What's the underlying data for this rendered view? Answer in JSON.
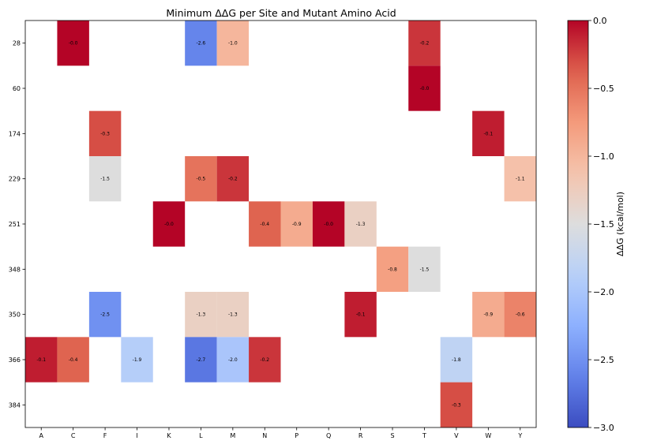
{
  "chart_data": {
    "type": "heatmap",
    "title": "Minimum ΔΔG per Site and Mutant Amino Acid",
    "xlabel": "",
    "ylabel": "",
    "x_categories": [
      "A",
      "C",
      "F",
      "I",
      "K",
      "L",
      "M",
      "N",
      "P",
      "Q",
      "R",
      "S",
      "T",
      "V",
      "W",
      "Y"
    ],
    "y_categories": [
      "28",
      "60",
      "174",
      "229",
      "251",
      "348",
      "350",
      "366",
      "384"
    ],
    "cells": [
      {
        "site": "28",
        "aa": "C",
        "value": -0.0,
        "label": "-0.0"
      },
      {
        "site": "28",
        "aa": "L",
        "value": -2.6,
        "label": "-2.6"
      },
      {
        "site": "28",
        "aa": "M",
        "value": -1.0,
        "label": "-1.0"
      },
      {
        "site": "28",
        "aa": "T",
        "value": -0.2,
        "label": "-0.2"
      },
      {
        "site": "60",
        "aa": "T",
        "value": -0.0,
        "label": "-0.0"
      },
      {
        "site": "174",
        "aa": "F",
        "value": -0.3,
        "label": "-0.3"
      },
      {
        "site": "174",
        "aa": "W",
        "value": -0.1,
        "label": "-0.1"
      },
      {
        "site": "229",
        "aa": "F",
        "value": -1.5,
        "label": "-1.5"
      },
      {
        "site": "229",
        "aa": "L",
        "value": -0.5,
        "label": "-0.5"
      },
      {
        "site": "229",
        "aa": "M",
        "value": -0.2,
        "label": "-0.2"
      },
      {
        "site": "229",
        "aa": "Y",
        "value": -1.1,
        "label": "-1.1"
      },
      {
        "site": "251",
        "aa": "K",
        "value": -0.0,
        "label": "-0.0"
      },
      {
        "site": "251",
        "aa": "N",
        "value": -0.4,
        "label": "-0.4"
      },
      {
        "site": "251",
        "aa": "P",
        "value": -0.9,
        "label": "-0.9"
      },
      {
        "site": "251",
        "aa": "Q",
        "value": -0.0,
        "label": "-0.0"
      },
      {
        "site": "251",
        "aa": "R",
        "value": -1.3,
        "label": "-1.3"
      },
      {
        "site": "348",
        "aa": "S",
        "value": -0.8,
        "label": "-0.8"
      },
      {
        "site": "348",
        "aa": "T",
        "value": -1.5,
        "label": "-1.5"
      },
      {
        "site": "350",
        "aa": "F",
        "value": -2.5,
        "label": "-2.5"
      },
      {
        "site": "350",
        "aa": "L",
        "value": -1.3,
        "label": "-1.3"
      },
      {
        "site": "350",
        "aa": "M",
        "value": -1.3,
        "label": "-1.3"
      },
      {
        "site": "350",
        "aa": "R",
        "value": -0.1,
        "label": "-0.1"
      },
      {
        "site": "350",
        "aa": "W",
        "value": -0.9,
        "label": "-0.9"
      },
      {
        "site": "350",
        "aa": "Y",
        "value": -0.6,
        "label": "-0.6"
      },
      {
        "site": "366",
        "aa": "A",
        "value": -0.1,
        "label": "-0.1"
      },
      {
        "site": "366",
        "aa": "C",
        "value": -0.4,
        "label": "-0.4"
      },
      {
        "site": "366",
        "aa": "I",
        "value": -1.9,
        "label": "-1.9"
      },
      {
        "site": "366",
        "aa": "L",
        "value": -2.7,
        "label": "-2.7"
      },
      {
        "site": "366",
        "aa": "M",
        "value": -2.0,
        "label": "-2.0"
      },
      {
        "site": "366",
        "aa": "N",
        "value": -0.2,
        "label": "-0.2"
      },
      {
        "site": "366",
        "aa": "V",
        "value": -1.8,
        "label": "-1.8"
      },
      {
        "site": "384",
        "aa": "V",
        "value": -0.3,
        "label": "-0.3"
      }
    ],
    "colorbar": {
      "label": "ΔΔG (kcal/mol)",
      "range": [
        -3.0,
        0.0
      ],
      "ticks": [
        0.0,
        -0.5,
        -1.0,
        -1.5,
        -2.0,
        -2.5,
        -3.0
      ],
      "tick_labels": [
        "0.0",
        "−0.5",
        "−1.0",
        "−1.5",
        "−2.0",
        "−2.5",
        "−3.0"
      ],
      "colormap": "coolwarm"
    },
    "grid": false
  }
}
